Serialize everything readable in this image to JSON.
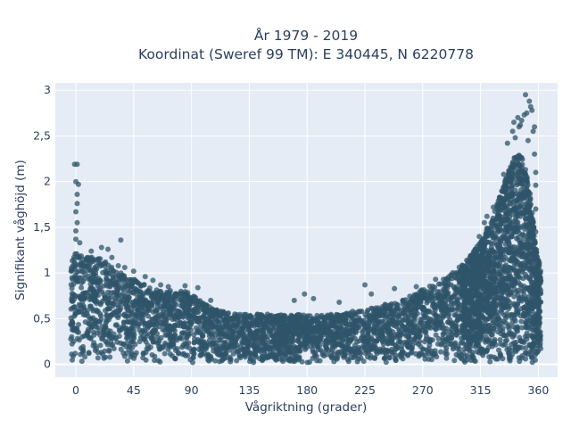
{
  "chart_data": {
    "type": "scatter",
    "title_line1": "År 1979 - 2019",
    "title_line2": "Koordinat (Sweref 99 TM): E 340445, N 6220778",
    "xlabel": "Vågriktning (grader)",
    "ylabel": "Signifikant våghöjd (m)",
    "xlim": [
      -16,
      375
    ],
    "ylim": [
      -0.14,
      3.08
    ],
    "x_ticks": [
      0,
      45,
      90,
      135,
      180,
      225,
      270,
      315,
      360
    ],
    "x_tick_labels": [
      "0",
      "45",
      "90",
      "135",
      "180",
      "225",
      "270",
      "315",
      "360"
    ],
    "y_ticks": [
      0,
      0.5,
      1,
      1.5,
      2,
      2.5,
      3
    ],
    "y_tick_labels": [
      "0",
      "0,5",
      "1",
      "1,5",
      "2",
      "2,5",
      "3"
    ],
    "grid": true,
    "marker_color": "#2f5469",
    "plot_bg": "#e5ecf6",
    "upper_envelope": [
      [
        -4,
        1.15
      ],
      [
        0,
        1.22
      ],
      [
        10,
        1.2
      ],
      [
        20,
        1.15
      ],
      [
        30,
        1.05
      ],
      [
        40,
        0.98
      ],
      [
        50,
        0.9
      ],
      [
        60,
        0.82
      ],
      [
        70,
        0.8
      ],
      [
        80,
        0.82
      ],
      [
        90,
        0.78
      ],
      [
        100,
        0.66
      ],
      [
        110,
        0.6
      ],
      [
        120,
        0.56
      ],
      [
        135,
        0.55
      ],
      [
        150,
        0.55
      ],
      [
        165,
        0.55
      ],
      [
        180,
        0.55
      ],
      [
        200,
        0.55
      ],
      [
        225,
        0.6
      ],
      [
        240,
        0.66
      ],
      [
        255,
        0.72
      ],
      [
        270,
        0.82
      ],
      [
        285,
        0.92
      ],
      [
        295,
        1.02
      ],
      [
        305,
        1.15
      ],
      [
        315,
        1.35
      ],
      [
        322,
        1.55
      ],
      [
        330,
        1.85
      ],
      [
        337,
        2.15
      ],
      [
        343,
        2.35
      ],
      [
        348,
        2.25
      ],
      [
        353,
        1.95
      ],
      [
        358,
        1.3
      ],
      [
        362,
        1.05
      ]
    ],
    "outliers": [
      [
        -1,
        2.19
      ],
      [
        1,
        2.19
      ],
      [
        0,
        2.0
      ],
      [
        2,
        1.97
      ],
      [
        1,
        1.86
      ],
      [
        1,
        1.76
      ],
      [
        0,
        1.67
      ],
      [
        1,
        1.55
      ],
      [
        0,
        1.46
      ],
      [
        0,
        1.37
      ],
      [
        3,
        1.33
      ],
      [
        20,
        1.28
      ],
      [
        25,
        1.26
      ],
      [
        35,
        1.36
      ],
      [
        12,
        1.24
      ],
      [
        28,
        1.17
      ],
      [
        23,
        1.12
      ],
      [
        33,
        1.08
      ],
      [
        38,
        1.06
      ],
      [
        45,
        1.02
      ],
      [
        54,
        0.96
      ],
      [
        60,
        0.92
      ],
      [
        66,
        0.87
      ],
      [
        72,
        0.85
      ],
      [
        85,
        0.86
      ],
      [
        95,
        0.84
      ],
      [
        105,
        0.7
      ],
      [
        170,
        0.7
      ],
      [
        178,
        0.77
      ],
      [
        185,
        0.72
      ],
      [
        205,
        0.68
      ],
      [
        225,
        0.87
      ],
      [
        230,
        0.77
      ],
      [
        248,
        0.83
      ],
      [
        265,
        0.85
      ],
      [
        280,
        0.93
      ],
      [
        288,
        0.87
      ],
      [
        300,
        1.04
      ],
      [
        306,
        1.0
      ],
      [
        314,
        1.4
      ],
      [
        318,
        1.55
      ],
      [
        325,
        1.72
      ],
      [
        330,
        1.83
      ],
      [
        333,
        2.08
      ],
      [
        337,
        2.12
      ],
      [
        342,
        2.48
      ],
      [
        346,
        2.62
      ],
      [
        349,
        2.73
      ],
      [
        350,
        2.95
      ],
      [
        353,
        2.88
      ],
      [
        355,
        2.78
      ],
      [
        357,
        2.6
      ],
      [
        352,
        2.45
      ],
      [
        357,
        2.3
      ],
      [
        358,
        2.1
      ],
      [
        358,
        1.96
      ],
      [
        358,
        1.7
      ],
      [
        358,
        1.45
      ],
      [
        344,
        2.7
      ],
      [
        340,
        2.55
      ],
      [
        336,
        2.42
      ],
      [
        320,
        1.62
      ],
      [
        345,
        2.6
      ],
      [
        347,
        2.67
      ],
      [
        351,
        2.75
      ],
      [
        354,
        2.82
      ],
      [
        356,
        2.55
      ],
      [
        341,
        2.65
      ]
    ]
  }
}
